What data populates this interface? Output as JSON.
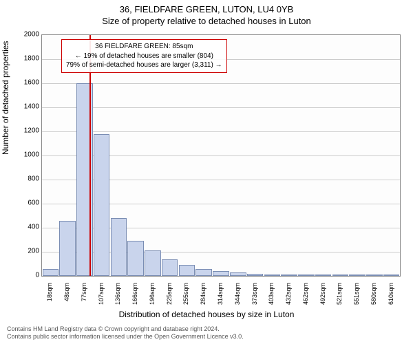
{
  "title_line1": "36, FIELDFARE GREEN, LUTON, LU4 0YB",
  "title_line2": "Size of property relative to detached houses in Luton",
  "ylabel": "Number of detached properties",
  "xlabel": "Distribution of detached houses by size in Luton",
  "chart": {
    "type": "histogram",
    "ylim": [
      0,
      2000
    ],
    "ytick_step": 200,
    "background_color": "#fdfdfd",
    "grid_color": "#cccccc",
    "bar_fill": "#c9d4ec",
    "bar_stroke": "#7a8db3",
    "marker_color": "#cc0000",
    "marker_x_category": "85sqm",
    "categories": [
      "18sqm",
      "48sqm",
      "77sqm",
      "107sqm",
      "136sqm",
      "166sqm",
      "196sqm",
      "225sqm",
      "255sqm",
      "284sqm",
      "314sqm",
      "344sqm",
      "373sqm",
      "403sqm",
      "432sqm",
      "462sqm",
      "492sqm",
      "521sqm",
      "551sqm",
      "580sqm",
      "610sqm"
    ],
    "values": [
      60,
      460,
      1600,
      1180,
      480,
      290,
      210,
      140,
      90,
      60,
      40,
      30,
      15,
      8,
      5,
      4,
      3,
      2,
      1,
      1,
      0
    ]
  },
  "annotation": {
    "line1": "36 FIELDFARE GREEN: 85sqm",
    "line2": "← 19% of detached houses are smaller (804)",
    "line3": "79% of semi-detached houses are larger (3,311) →",
    "border_color": "#cc0000"
  },
  "footer_line1": "Contains HM Land Registry data © Crown copyright and database right 2024.",
  "footer_line2": "Contains public sector information licensed under the Open Government Licence v3.0."
}
